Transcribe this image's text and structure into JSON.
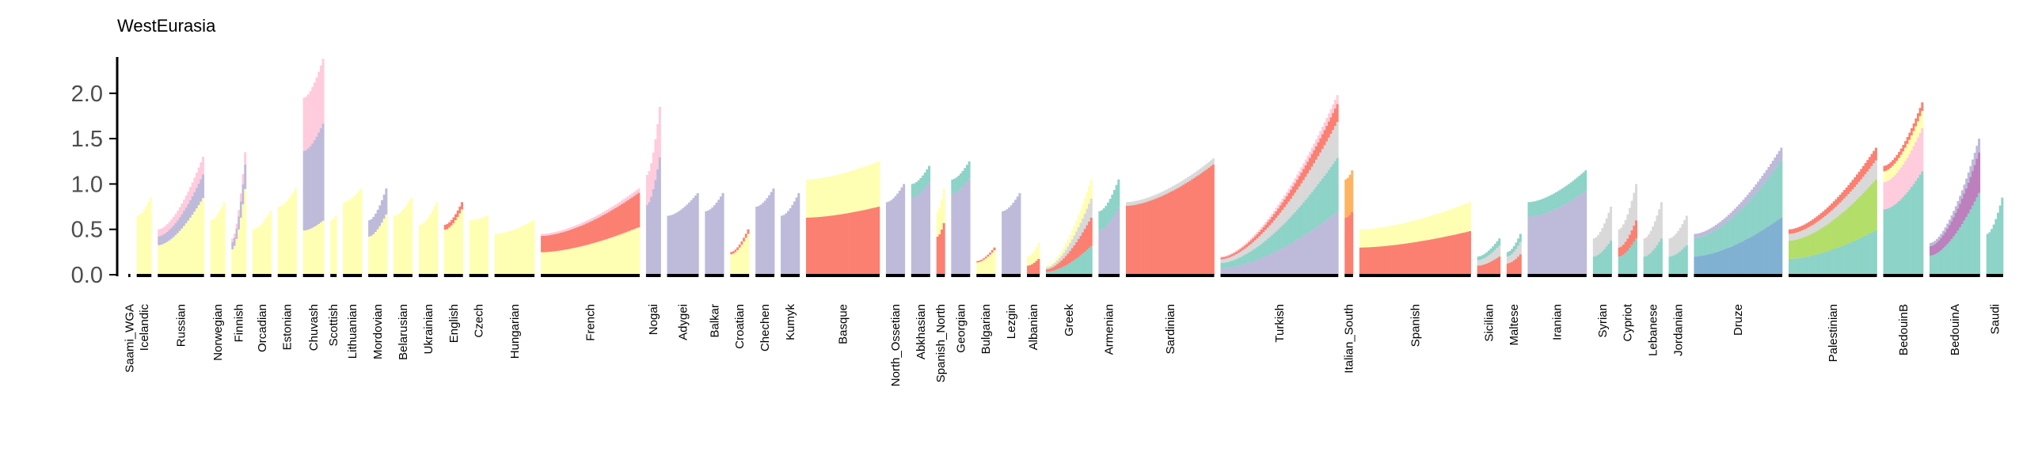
{
  "chart_data": {
    "type": "bar",
    "stacked": true,
    "title": "WestEurasia",
    "xlabel": "",
    "ylabel": "",
    "ylim": [
      0,
      2.4
    ],
    "yticks": [
      0.0,
      0.5,
      1.0,
      1.5,
      2.0
    ],
    "ytick_labels": [
      "0.0",
      "0.5",
      "1.0",
      "1.5",
      "2.0"
    ],
    "grid": false,
    "legend": "none",
    "colors": {
      "yellow": "#ffffb3",
      "lavender": "#bebada",
      "pink": "#ffccdd",
      "salmon": "#fb8072",
      "teal": "#8dd3c7",
      "blue": "#80b1d3",
      "green": "#b3de69",
      "orange": "#fdb462",
      "grey": "#d9d9d9",
      "purple": "#bc80bd",
      "baseline": "#000000"
    },
    "populations": [
      {
        "label": "Saami_WGA",
        "n": 1,
        "y_start": 0.02,
        "y_end": 0.02,
        "components": {
          "yellow": 1.0
        }
      },
      {
        "label": "Icelandic",
        "n": 7,
        "y_start": 0.65,
        "y_end": 0.85,
        "components": {
          "yellow": 1.0
        }
      },
      {
        "label": "Russian",
        "n": 22,
        "y_start": 0.5,
        "y_end": 1.3,
        "components": {
          "yellow": 0.65,
          "lavender": 0.2,
          "pink": 0.15
        }
      },
      {
        "label": "Norwegian",
        "n": 7,
        "y_start": 0.6,
        "y_end": 0.8,
        "components": {
          "yellow": 1.0
        }
      },
      {
        "label": "Finnish",
        "n": 7,
        "y_start": 0.4,
        "y_end": 1.35,
        "components": {
          "yellow": 0.7,
          "lavender": 0.2,
          "pink": 0.1
        }
      },
      {
        "label": "Orcadian",
        "n": 9,
        "y_start": 0.5,
        "y_end": 0.7,
        "components": {
          "yellow": 1.0
        }
      },
      {
        "label": "Estonian",
        "n": 9,
        "y_start": 0.75,
        "y_end": 0.95,
        "components": {
          "yellow": 1.0
        }
      },
      {
        "label": "Chuvash",
        "n": 10,
        "y_start": 1.95,
        "y_end": 2.38,
        "components": {
          "yellow": 0.25,
          "lavender": 0.45,
          "pink": 0.3
        }
      },
      {
        "label": "Scottish",
        "n": 3,
        "y_start": 0.6,
        "y_end": 0.65,
        "components": {
          "yellow": 1.0
        }
      },
      {
        "label": "Lithuanian",
        "n": 9,
        "y_start": 0.8,
        "y_end": 0.95,
        "components": {
          "yellow": 1.0
        }
      },
      {
        "label": "Mordovian",
        "n": 9,
        "y_start": 0.6,
        "y_end": 0.95,
        "components": {
          "yellow": 0.7,
          "lavender": 0.3
        }
      },
      {
        "label": "Belarusian",
        "n": 9,
        "y_start": 0.65,
        "y_end": 0.85,
        "components": {
          "yellow": 1.0
        }
      },
      {
        "label": "Ukrainian",
        "n": 9,
        "y_start": 0.55,
        "y_end": 0.8,
        "components": {
          "yellow": 1.0
        }
      },
      {
        "label": "English",
        "n": 9,
        "y_start": 0.55,
        "y_end": 0.8,
        "components": {
          "yellow": 0.9,
          "salmon": 0.1
        }
      },
      {
        "label": "Czech",
        "n": 9,
        "y_start": 0.6,
        "y_end": 0.65,
        "components": {
          "yellow": 1.0
        }
      },
      {
        "label": "Hungarian",
        "n": 19,
        "y_start": 0.45,
        "y_end": 0.6,
        "components": {
          "yellow": 1.0
        }
      },
      {
        "label": "French",
        "n": 47,
        "y_start": 0.45,
        "y_end": 0.95,
        "components": {
          "yellow": 0.55,
          "salmon": 0.4,
          "pink": 0.05
        }
      },
      {
        "label": "Nogai",
        "n": 7,
        "y_start": 1.1,
        "y_end": 1.85,
        "components": {
          "lavender": 0.7,
          "pink": 0.3
        }
      },
      {
        "label": "Adygei",
        "n": 15,
        "y_start": 0.65,
        "y_end": 0.9,
        "components": {
          "lavender": 1.0
        }
      },
      {
        "label": "Balkar",
        "n": 9,
        "y_start": 0.7,
        "y_end": 0.9,
        "components": {
          "lavender": 1.0
        }
      },
      {
        "label": "Croatian",
        "n": 9,
        "y_start": 0.25,
        "y_end": 0.5,
        "components": {
          "yellow": 0.9,
          "salmon": 0.1
        }
      },
      {
        "label": "Chechen",
        "n": 9,
        "y_start": 0.75,
        "y_end": 0.95,
        "components": {
          "lavender": 1.0
        }
      },
      {
        "label": "Kumyk",
        "n": 9,
        "y_start": 0.65,
        "y_end": 0.9,
        "components": {
          "lavender": 1.0
        }
      },
      {
        "label": "Basque",
        "n": 35,
        "y_start": 1.05,
        "y_end": 1.25,
        "components": {
          "salmon": 0.6,
          "yellow": 0.4
        }
      },
      {
        "label": "North_Ossetian",
        "n": 9,
        "y_start": 0.8,
        "y_end": 1.0,
        "components": {
          "lavender": 1.0
        }
      },
      {
        "label": "Abkhasian",
        "n": 9,
        "y_start": 1.0,
        "y_end": 1.2,
        "components": {
          "lavender": 0.85,
          "teal": 0.15
        }
      },
      {
        "label": "Spanish_North",
        "n": 4,
        "y_start": 0.7,
        "y_end": 0.95,
        "components": {
          "salmon": 0.6,
          "yellow": 0.4
        }
      },
      {
        "label": "Georgian",
        "n": 9,
        "y_start": 1.05,
        "y_end": 1.25,
        "components": {
          "lavender": 0.85,
          "teal": 0.15
        }
      },
      {
        "label": "Bulgarian",
        "n": 9,
        "y_start": 0.15,
        "y_end": 0.3,
        "components": {
          "yellow": 0.9,
          "salmon": 0.1
        }
      },
      {
        "label": "Lezgin",
        "n": 9,
        "y_start": 0.7,
        "y_end": 0.9,
        "components": {
          "lavender": 1.0
        }
      },
      {
        "label": "Albanian",
        "n": 6,
        "y_start": 0.2,
        "y_end": 0.35,
        "components": {
          "salmon": 0.5,
          "yellow": 0.5
        }
      },
      {
        "label": "Greek",
        "n": 22,
        "y_start": 0.1,
        "y_end": 1.05,
        "components": {
          "teal": 0.3,
          "salmon": 0.3,
          "grey": 0.2,
          "yellow": 0.2
        }
      },
      {
        "label": "Armenian",
        "n": 10,
        "y_start": 0.7,
        "y_end": 1.05,
        "components": {
          "lavender": 0.7,
          "teal": 0.3
        }
      },
      {
        "label": "Sardinian",
        "n": 42,
        "y_start": 0.8,
        "y_end": 1.28,
        "components": {
          "salmon": 0.95,
          "grey": 0.05
        }
      },
      {
        "label": "Turkish",
        "n": 56,
        "y_start": 0.2,
        "y_end": 1.98,
        "components": {
          "lavender": 0.35,
          "teal": 0.3,
          "grey": 0.2,
          "salmon": 0.1,
          "pink": 0.05
        }
      },
      {
        "label": "Italian_South",
        "n": 4,
        "y_start": 1.05,
        "y_end": 1.15,
        "components": {
          "salmon": 0.6,
          "orange": 0.4
        }
      },
      {
        "label": "Spanish",
        "n": 53,
        "y_start": 0.5,
        "y_end": 0.8,
        "components": {
          "salmon": 0.6,
          "yellow": 0.4
        }
      },
      {
        "label": "Sicilian",
        "n": 11,
        "y_start": 0.2,
        "y_end": 0.4,
        "components": {
          "salmon": 0.5,
          "grey": 0.3,
          "teal": 0.2
        }
      },
      {
        "label": "Maltese",
        "n": 7,
        "y_start": 0.25,
        "y_end": 0.45,
        "components": {
          "salmon": 0.5,
          "grey": 0.3,
          "teal": 0.2
        }
      },
      {
        "label": "Iranian",
        "n": 28,
        "y_start": 0.8,
        "y_end": 1.15,
        "components": {
          "lavender": 0.8,
          "teal": 0.2
        }
      },
      {
        "label": "Syrian",
        "n": 9,
        "y_start": 0.4,
        "y_end": 0.75,
        "components": {
          "teal": 0.5,
          "grey": 0.5
        }
      },
      {
        "label": "Cypriot",
        "n": 9,
        "y_start": 0.5,
        "y_end": 1.0,
        "components": {
          "teal": 0.4,
          "salmon": 0.2,
          "grey": 0.4
        }
      },
      {
        "label": "Lebanese",
        "n": 9,
        "y_start": 0.4,
        "y_end": 0.8,
        "components": {
          "teal": 0.5,
          "grey": 0.5
        }
      },
      {
        "label": "Jordanian",
        "n": 9,
        "y_start": 0.4,
        "y_end": 0.65,
        "components": {
          "teal": 0.5,
          "grey": 0.5
        }
      },
      {
        "label": "Druze",
        "n": 42,
        "y_start": 0.45,
        "y_end": 1.4,
        "components": {
          "blue": 0.45,
          "teal": 0.45,
          "lavender": 0.1
        }
      },
      {
        "label": "Palestinian",
        "n": 42,
        "y_start": 0.5,
        "y_end": 1.4,
        "components": {
          "teal": 0.35,
          "green": 0.4,
          "grey": 0.15,
          "salmon": 0.1
        }
      },
      {
        "label": "BedouinB",
        "n": 19,
        "y_start": 1.2,
        "y_end": 1.9,
        "components": {
          "teal": 0.6,
          "pink": 0.25,
          "yellow": 0.1,
          "salmon": 0.05
        }
      },
      {
        "label": "BedouinA",
        "n": 24,
        "y_start": 0.35,
        "y_end": 1.5,
        "components": {
          "teal": 0.6,
          "purple": 0.3,
          "lavender": 0.1
        }
      },
      {
        "label": "Saudi",
        "n": 8,
        "y_start": 0.45,
        "y_end": 0.85,
        "components": {
          "teal": 1.0
        }
      }
    ]
  }
}
